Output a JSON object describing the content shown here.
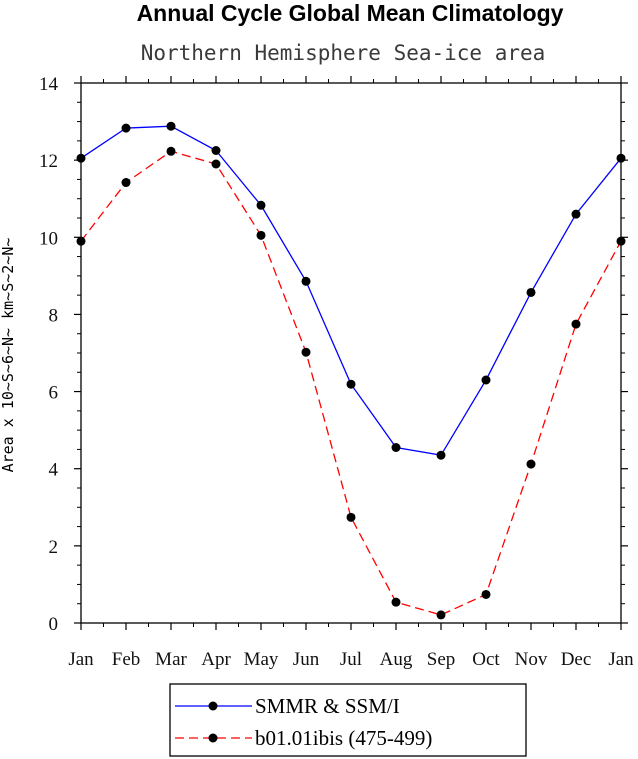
{
  "chart_data": {
    "type": "line",
    "title": "Annual Cycle Global Mean Climatology",
    "subtitle": "Northern Hemisphere Sea-ice area",
    "xlabel": "",
    "ylabel": "Area x 10~S~6~N~ km~S~2~N~",
    "categories": [
      "Jan",
      "Feb",
      "Mar",
      "Apr",
      "May",
      "Jun",
      "Jul",
      "Aug",
      "Sep",
      "Oct",
      "Nov",
      "Dec",
      "Jan"
    ],
    "ylim": [
      0,
      14
    ],
    "yticks": [
      0,
      2,
      4,
      6,
      8,
      10,
      12,
      14
    ],
    "grid": false,
    "legend_position": "bottom-center",
    "series": [
      {
        "name": "SMMR & SSM/I",
        "color": "#0000ff",
        "dash": "solid",
        "values": [
          12.05,
          12.83,
          12.88,
          12.25,
          10.83,
          8.86,
          6.19,
          4.55,
          4.35,
          6.3,
          8.57,
          10.6,
          12.05
        ]
      },
      {
        "name": "b01.01ibis (475-499)",
        "color": "#ff0000",
        "dash": "dashed",
        "values": [
          9.9,
          11.42,
          12.23,
          11.9,
          10.05,
          7.02,
          2.74,
          0.54,
          0.21,
          0.74,
          4.12,
          7.75,
          9.9
        ]
      }
    ]
  }
}
